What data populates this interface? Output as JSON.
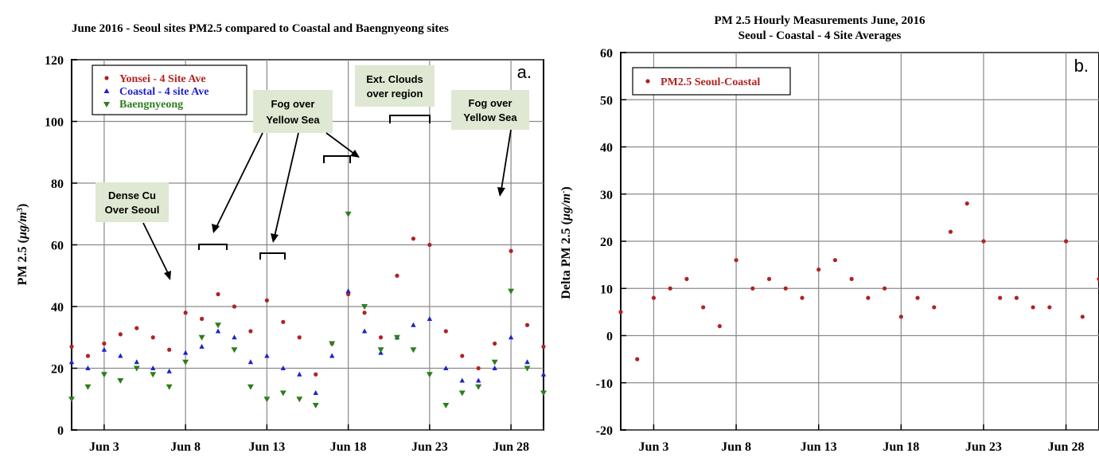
{
  "chart_data": [
    {
      "type": "scatter",
      "panel_label": "a.",
      "title": "June 2016 - Seoul sites PM2.5 compared to Coastal and Baengnyeong sites",
      "ylabel": "PM 2.5 (µg/m³)",
      "ylabel_base": "PM 2.5 (",
      "ylabel_unit": "µg/m",
      "ylabel_sup": "3",
      "ylabel_close": ")",
      "xlim": [
        "2016-06-01",
        "2016-06-30"
      ],
      "ylim": [
        0,
        120
      ],
      "xticks": [
        "2016-06-03",
        "2016-06-08",
        "2016-06-13",
        "2016-06-18",
        "2016-06-23",
        "2016-06-28"
      ],
      "xtick_labels": [
        "Jun 3",
        "Jun 8",
        "Jun 13",
        "Jun 18",
        "Jun 23",
        "Jun 28"
      ],
      "yticks": [
        0,
        20,
        40,
        60,
        80,
        100,
        120
      ],
      "grid": true,
      "legend_position": "top-left",
      "series": [
        {
          "name": "Yonsei - 4 Site Ave",
          "marker": "circle",
          "color": "#b22222",
          "x": [
            "2016-06-01",
            "2016-06-02",
            "2016-06-03",
            "2016-06-04",
            "2016-06-05",
            "2016-06-06",
            "2016-06-07",
            "2016-06-08",
            "2016-06-09",
            "2016-06-10",
            "2016-06-11",
            "2016-06-12",
            "2016-06-13",
            "2016-06-14",
            "2016-06-15",
            "2016-06-16",
            "2016-06-17",
            "2016-06-18",
            "2016-06-19",
            "2016-06-20",
            "2016-06-21",
            "2016-06-22",
            "2016-06-23",
            "2016-06-24",
            "2016-06-25",
            "2016-06-26",
            "2016-06-27",
            "2016-06-28",
            "2016-06-29",
            "2016-06-30"
          ],
          "y": [
            27,
            24,
            28,
            31,
            33,
            30,
            26,
            38,
            36,
            44,
            40,
            32,
            42,
            35,
            30,
            18,
            28,
            44,
            38,
            30,
            50,
            62,
            60,
            32,
            24,
            20,
            28,
            58,
            34,
            27
          ]
        },
        {
          "name": "Coastal - 4 site Ave",
          "marker": "triangle-up",
          "color": "#1f22c8",
          "x": [
            "2016-06-01",
            "2016-06-02",
            "2016-06-03",
            "2016-06-04",
            "2016-06-05",
            "2016-06-06",
            "2016-06-07",
            "2016-06-08",
            "2016-06-09",
            "2016-06-10",
            "2016-06-11",
            "2016-06-12",
            "2016-06-13",
            "2016-06-14",
            "2016-06-15",
            "2016-06-16",
            "2016-06-17",
            "2016-06-18",
            "2016-06-19",
            "2016-06-20",
            "2016-06-21",
            "2016-06-22",
            "2016-06-23",
            "2016-06-24",
            "2016-06-25",
            "2016-06-26",
            "2016-06-27",
            "2016-06-28",
            "2016-06-29",
            "2016-06-30"
          ],
          "y": [
            22,
            20,
            26,
            24,
            22,
            20,
            19,
            25,
            27,
            32,
            30,
            22,
            24,
            20,
            18,
            12,
            24,
            45,
            32,
            25,
            30,
            34,
            36,
            20,
            16,
            16,
            20,
            30,
            22,
            18
          ]
        },
        {
          "name": "Baengnyeong",
          "marker": "triangle-down",
          "color": "#2e7d1e",
          "x": [
            "2016-06-01",
            "2016-06-02",
            "2016-06-03",
            "2016-06-04",
            "2016-06-05",
            "2016-06-06",
            "2016-06-07",
            "2016-06-08",
            "2016-06-09",
            "2016-06-10",
            "2016-06-11",
            "2016-06-12",
            "2016-06-13",
            "2016-06-14",
            "2016-06-15",
            "2016-06-16",
            "2016-06-17",
            "2016-06-18",
            "2016-06-19",
            "2016-06-20",
            "2016-06-21",
            "2016-06-22",
            "2016-06-23",
            "2016-06-24",
            "2016-06-25",
            "2016-06-26",
            "2016-06-27",
            "2016-06-28",
            "2016-06-29",
            "2016-06-30"
          ],
          "y": [
            10,
            14,
            18,
            16,
            20,
            18,
            14,
            22,
            30,
            34,
            26,
            14,
            10,
            12,
            10,
            8,
            28,
            70,
            40,
            26,
            30,
            26,
            18,
            8,
            12,
            14,
            22,
            45,
            20,
            12
          ]
        }
      ],
      "annotations": [
        {
          "text_lines": [
            "Dense Cu",
            "Over Seoul"
          ]
        },
        {
          "text_lines": [
            "Fog over",
            "Yellow Sea"
          ]
        },
        {
          "text_lines": [
            "Ext. Clouds",
            "over region"
          ]
        },
        {
          "text_lines": [
            "Fog over",
            "Yellow Sea"
          ]
        }
      ]
    },
    {
      "type": "scatter",
      "panel_label": "b.",
      "title_lines": [
        "PM 2.5  Hourly Measurements   June, 2016",
        "Seoul - Coastal - 4 Site Averages"
      ],
      "ylabel": "Delta PM 2.5 (µg/m⁻)",
      "ylabel_base": "Delta PM 2.5 (",
      "ylabel_unit": "µg/m",
      "ylabel_sup": "-",
      "ylabel_close": ")",
      "xlim": [
        "2016-06-01",
        "2016-06-30"
      ],
      "ylim": [
        -20,
        60
      ],
      "xticks": [
        "2016-06-03",
        "2016-06-08",
        "2016-06-13",
        "2016-06-18",
        "2016-06-23",
        "2016-06-28"
      ],
      "xtick_labels": [
        "Jun 3",
        "Jun 8",
        "Jun 13",
        "Jun 18",
        "Jun 23",
        "Jun 28"
      ],
      "yticks": [
        -20,
        -10,
        0,
        10,
        20,
        30,
        40,
        50,
        60
      ],
      "grid": true,
      "legend_position": "top-left",
      "series": [
        {
          "name": "PM2.5  Seoul-Coastal",
          "marker": "circle",
          "color": "#b22222",
          "x": [
            "2016-06-01",
            "2016-06-02",
            "2016-06-03",
            "2016-06-04",
            "2016-06-05",
            "2016-06-06",
            "2016-06-07",
            "2016-06-08",
            "2016-06-09",
            "2016-06-10",
            "2016-06-11",
            "2016-06-12",
            "2016-06-13",
            "2016-06-14",
            "2016-06-15",
            "2016-06-16",
            "2016-06-17",
            "2016-06-18",
            "2016-06-19",
            "2016-06-20",
            "2016-06-21",
            "2016-06-22",
            "2016-06-23",
            "2016-06-24",
            "2016-06-25",
            "2016-06-26",
            "2016-06-27",
            "2016-06-28",
            "2016-06-29",
            "2016-06-30"
          ],
          "y": [
            5,
            -5,
            8,
            10,
            12,
            6,
            2,
            16,
            10,
            12,
            10,
            8,
            14,
            16,
            12,
            8,
            10,
            4,
            8,
            6,
            22,
            28,
            20,
            8,
            8,
            6,
            6,
            20,
            4,
            12
          ]
        }
      ]
    }
  ]
}
